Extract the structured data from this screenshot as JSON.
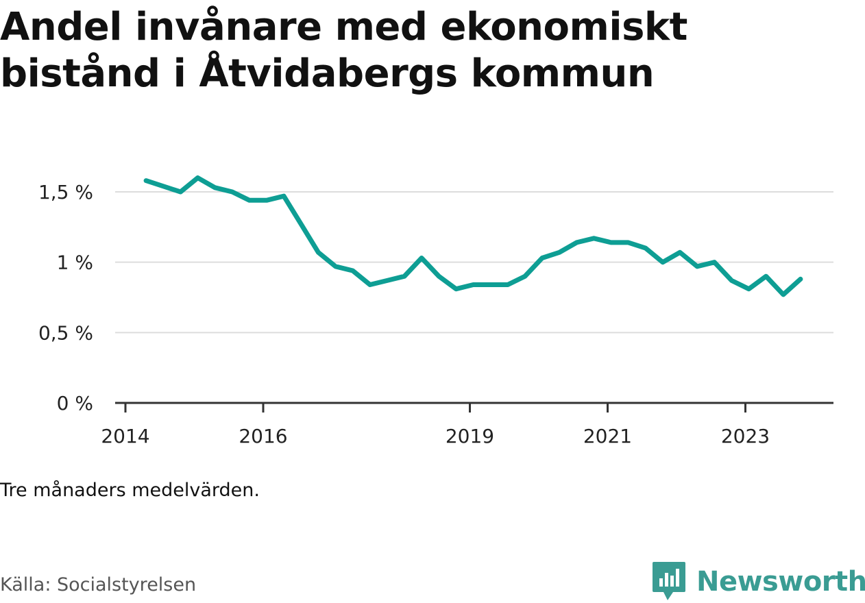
{
  "title": "Andel invånare med ekonomiskt bistånd i Åtvidabergs kommun",
  "note": "Tre månaders medelvärden.",
  "source": "Källa: Socialstyrelsen",
  "brand": {
    "name": "Newsworthy",
    "color": "#3a9c93"
  },
  "chart_data": {
    "type": "line",
    "title": "Andel invånare med ekonomiskt bistånd i Åtvidabergs kommun",
    "xlabel": "",
    "ylabel": "",
    "ylim": [
      0,
      1.6
    ],
    "xlim": [
      2014.0,
      2024.33
    ],
    "grid": true,
    "y_ticks": [
      {
        "value": 0,
        "label": "0 %"
      },
      {
        "value": 0.5,
        "label": "0,5 %"
      },
      {
        "value": 1,
        "label": "1 %"
      },
      {
        "value": 1.5,
        "label": "1,5 %"
      }
    ],
    "x_ticks": [
      {
        "value": 2014,
        "label": "2014"
      },
      {
        "value": 2016,
        "label": "2016"
      },
      {
        "value": 2019,
        "label": "2019"
      },
      {
        "value": 2021,
        "label": "2021"
      },
      {
        "value": 2023,
        "label": "2023"
      }
    ],
    "color": "#0e9e94",
    "series": [
      {
        "name": "",
        "x": [
          2014.3,
          2014.55,
          2014.8,
          2015.05,
          2015.3,
          2015.55,
          2015.8,
          2016.05,
          2016.3,
          2016.55,
          2016.8,
          2017.05,
          2017.3,
          2017.55,
          2017.8,
          2018.05,
          2018.3,
          2018.55,
          2018.8,
          2019.05,
          2019.3,
          2019.55,
          2019.8,
          2020.05,
          2020.3,
          2020.55,
          2020.8,
          2021.05,
          2021.3,
          2021.55,
          2021.8,
          2022.05,
          2022.3,
          2022.55,
          2022.8,
          2023.05,
          2023.3,
          2023.55,
          2023.8
        ],
        "y": [
          1.58,
          1.54,
          1.5,
          1.6,
          1.53,
          1.5,
          1.44,
          1.44,
          1.47,
          1.27,
          1.07,
          0.97,
          0.94,
          0.84,
          0.87,
          0.9,
          1.03,
          0.9,
          0.81,
          0.84,
          0.84,
          0.84,
          0.9,
          1.03,
          1.07,
          1.14,
          1.17,
          1.14,
          1.14,
          1.1,
          1.0,
          1.07,
          0.97,
          1.0,
          0.87,
          0.81,
          0.9,
          0.77,
          0.88
        ]
      }
    ]
  }
}
